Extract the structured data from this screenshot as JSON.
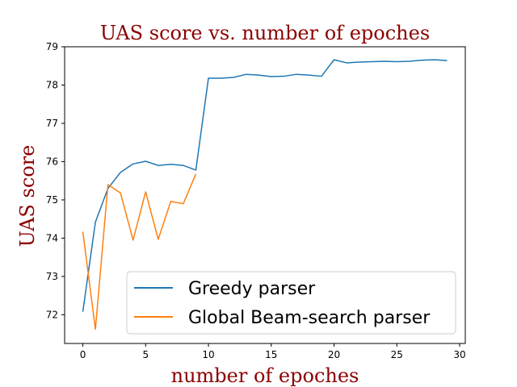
{
  "chart_data": {
    "type": "line",
    "title": "UAS score vs. number of epoches",
    "xlabel": "number of epoches",
    "ylabel": "UAS score",
    "xlim": [
      -1.45,
      30.45
    ],
    "ylim": [
      71.25,
      79.0
    ],
    "xticks": [
      0,
      5,
      10,
      15,
      20,
      25,
      30
    ],
    "yticks": [
      72,
      73,
      74,
      75,
      76,
      77,
      78,
      79
    ],
    "grid": false,
    "legend_position": "lower-right",
    "series": [
      {
        "name": "Greedy parser",
        "color": "#1f77b4",
        "x": [
          0,
          1,
          2,
          3,
          4,
          5,
          6,
          7,
          8,
          9,
          10,
          11,
          12,
          13,
          14,
          15,
          16,
          17,
          18,
          19,
          20,
          21,
          22,
          23,
          24,
          25,
          26,
          27,
          28,
          29
        ],
        "y": [
          72.08,
          74.42,
          75.3,
          75.72,
          75.94,
          76.01,
          75.9,
          75.93,
          75.9,
          75.78,
          78.18,
          78.18,
          78.2,
          78.28,
          78.26,
          78.22,
          78.23,
          78.28,
          78.26,
          78.23,
          78.66,
          78.58,
          78.6,
          78.61,
          78.62,
          78.61,
          78.62,
          78.65,
          78.66,
          78.64
        ]
      },
      {
        "name": "Global Beam-search parser",
        "color": "#ff7f0e",
        "x": [
          0,
          1,
          2,
          3,
          4,
          5,
          6,
          7,
          8,
          9
        ],
        "y": [
          74.17,
          71.62,
          75.4,
          75.18,
          73.95,
          75.21,
          73.97,
          74.96,
          74.9,
          75.68
        ]
      }
    ]
  }
}
